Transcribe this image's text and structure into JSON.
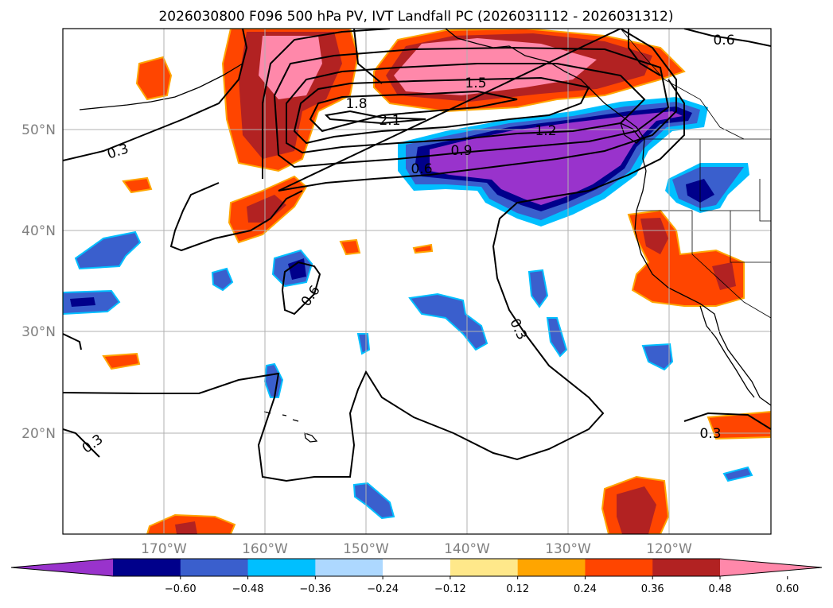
{
  "title": "2026030800 F096 500 hPa PV, IVT Landfall PC (2026031112 - 2026031312)",
  "map": {
    "lat_labels": [
      "50°N",
      "40°N",
      "30°N",
      "20°N"
    ],
    "lon_labels": [
      "170°W",
      "160°W",
      "150°W",
      "140°W",
      "130°W",
      "120°W"
    ]
  },
  "contour_labels": [
    {
      "id": "c-0p6-ne",
      "text": "0.6"
    },
    {
      "id": "c-1p5",
      "text": "1.5"
    },
    {
      "id": "c-1p8",
      "text": "1.8"
    },
    {
      "id": "c-2p1",
      "text": "2.1"
    },
    {
      "id": "c-1p2",
      "text": "1.2"
    },
    {
      "id": "c-0p9",
      "text": "0.9"
    },
    {
      "id": "c-0p6-mid",
      "text": "0.6"
    },
    {
      "id": "c-0p3-w",
      "text": "0.3"
    },
    {
      "id": "c-0p6-s",
      "text": "0.6"
    },
    {
      "id": "c-0p3-c",
      "text": "0.3"
    },
    {
      "id": "c-0p3-sw",
      "text": "0.3"
    },
    {
      "id": "c-0p3-se",
      "text": "0.3"
    }
  ],
  "colorbar": {
    "ticks": [
      "−0.60",
      "−0.48",
      "−0.36",
      "−0.24",
      "−0.12",
      "0.12",
      "0.24",
      "0.36",
      "0.48",
      "0.60"
    ],
    "colors": [
      "#9933cc",
      "#00008b",
      "#3a5fcd",
      "#00bfff",
      "#add8ff",
      "#ffffff",
      "#ffe88a",
      "#ffa500",
      "#ff4500",
      "#b22222",
      "#ff88aa"
    ]
  }
}
